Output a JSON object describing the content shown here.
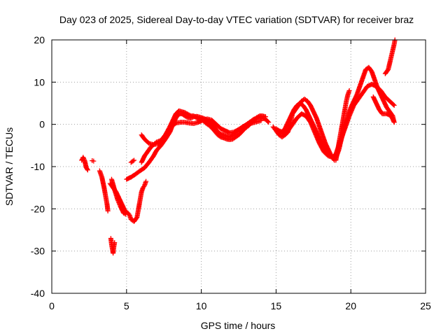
{
  "chart_data": {
    "type": "scatter",
    "title": "Day 023 of 2025, Sidereal Day-to-day VTEC variation (SDTVAR) for receiver braz",
    "xlabel": "GPS time / hours",
    "ylabel": "SDTVAR / TECUs",
    "xlim": [
      0,
      25
    ],
    "ylim": [
      -40,
      20
    ],
    "xticks": [
      0,
      5,
      10,
      15,
      20,
      25
    ],
    "yticks": [
      -40,
      -30,
      -20,
      -10,
      0,
      10,
      20
    ],
    "grid": true,
    "marker": "plus",
    "color": "#ff0000",
    "series": [
      {
        "segments": [
          [
            [
              2.0,
              -8.5
            ],
            [
              2.1,
              -7.8
            ],
            [
              2.2,
              -8.6
            ],
            [
              2.3,
              -10.2
            ],
            [
              2.4,
              -10.8
            ]
          ],
          [
            [
              2.7,
              -8.6
            ],
            [
              2.8,
              -8.7
            ]
          ],
          [
            [
              3.2,
              -11.0
            ],
            [
              3.35,
              -12.5
            ],
            [
              3.5,
              -15.0
            ],
            [
              3.6,
              -17.0
            ],
            [
              3.7,
              -19.0
            ],
            [
              3.75,
              -20.5
            ]
          ],
          [
            [
              3.95,
              -27.0
            ],
            [
              4.0,
              -28.5
            ],
            [
              4.05,
              -29.5
            ],
            [
              4.1,
              -30.5
            ],
            [
              4.15,
              -29.0
            ],
            [
              4.2,
              -28.0
            ]
          ],
          [
            [
              4.0,
              -13.0
            ],
            [
              4.2,
              -15.5
            ],
            [
              4.4,
              -17.8
            ],
            [
              4.6,
              -19.5
            ],
            [
              4.8,
              -21.0
            ],
            [
              4.95,
              -21.3
            ]
          ],
          [
            [
              3.9,
              -14.0
            ],
            [
              4.1,
              -15.0
            ],
            [
              4.3,
              -16.0
            ],
            [
              4.5,
              -17.5
            ],
            [
              4.7,
              -19.0
            ],
            [
              4.9,
              -20.5
            ],
            [
              5.1,
              -21.0
            ],
            [
              5.2,
              -21.5
            ],
            [
              5.3,
              -22.5
            ],
            [
              5.5,
              -23.0
            ],
            [
              5.7,
              -22.0
            ],
            [
              5.8,
              -20.0
            ],
            [
              5.9,
              -18.0
            ],
            [
              6.0,
              -16.0
            ],
            [
              6.1,
              -15.0
            ],
            [
              6.2,
              -14.5
            ],
            [
              6.3,
              -13.5
            ]
          ],
          [
            [
              5.0,
              -13.0
            ],
            [
              5.3,
              -12.5
            ],
            [
              5.6,
              -11.8
            ],
            [
              5.9,
              -11.0
            ],
            [
              6.2,
              -10.3
            ],
            [
              6.5,
              -9.0
            ],
            [
              6.8,
              -7.5
            ],
            [
              7.0,
              -6.2
            ],
            [
              7.3,
              -5.0
            ],
            [
              7.6,
              -3.5
            ],
            [
              7.9,
              -1.8
            ],
            [
              8.1,
              0.0
            ],
            [
              8.3,
              1.5
            ],
            [
              8.5,
              2.5
            ],
            [
              8.7,
              2.5
            ],
            [
              8.9,
              2.0
            ],
            [
              9.1,
              1.6
            ],
            [
              9.3,
              1.5
            ],
            [
              9.5,
              1.8
            ],
            [
              9.7,
              1.9
            ],
            [
              9.9,
              1.7
            ],
            [
              10.1,
              1.5
            ],
            [
              10.3,
              1.2
            ],
            [
              10.5,
              0.7
            ],
            [
              10.7,
              0.2
            ],
            [
              10.9,
              -0.8
            ],
            [
              11.1,
              -1.8
            ],
            [
              11.3,
              -2.3
            ],
            [
              11.5,
              -2.5
            ],
            [
              11.7,
              -2.8
            ],
            [
              11.9,
              -3.0
            ],
            [
              12.1,
              -2.6
            ],
            [
              12.3,
              -2.0
            ],
            [
              12.5,
              -1.4
            ],
            [
              12.7,
              -0.9
            ],
            [
              12.9,
              -0.3
            ],
            [
              13.1,
              0.2
            ],
            [
              13.3,
              0.7
            ],
            [
              13.5,
              1.2
            ],
            [
              13.7,
              1.5
            ],
            [
              13.9,
              1.7
            ],
            [
              14.1,
              1.5
            ],
            [
              14.3,
              1.2
            ],
            [
              14.5,
              0.5
            ]
          ],
          [
            [
              6.0,
              -9.0
            ],
            [
              6.2,
              -7.5
            ],
            [
              6.4,
              -6.5
            ],
            [
              6.6,
              -5.5
            ],
            [
              6.8,
              -4.8
            ],
            [
              7.0,
              -4.2
            ],
            [
              7.3,
              -3.8
            ],
            [
              7.6,
              -2.5
            ],
            [
              7.9,
              -0.5
            ],
            [
              8.1,
              1.0
            ],
            [
              8.3,
              2.5
            ],
            [
              8.5,
              3.2
            ],
            [
              8.7,
              3.0
            ],
            [
              8.9,
              2.8
            ],
            [
              9.1,
              2.4
            ],
            [
              9.3,
              2.0
            ],
            [
              9.5,
              2.0
            ],
            [
              9.7,
              1.5
            ],
            [
              9.9,
              1.2
            ],
            [
              10.1,
              1.0
            ],
            [
              10.3,
              0.3
            ],
            [
              10.5,
              -0.2
            ],
            [
              10.7,
              -0.8
            ],
            [
              10.9,
              -1.6
            ],
            [
              11.1,
              -2.5
            ],
            [
              11.3,
              -3.0
            ],
            [
              11.5,
              -3.2
            ],
            [
              11.7,
              -3.5
            ],
            [
              11.9,
              -3.6
            ],
            [
              12.1,
              -3.5
            ],
            [
              12.3,
              -3.0
            ],
            [
              12.5,
              -2.5
            ],
            [
              12.7,
              -1.8
            ],
            [
              12.9,
              -1.0
            ],
            [
              13.1,
              -0.5
            ],
            [
              13.3,
              0.2
            ],
            [
              13.5,
              0.9
            ],
            [
              13.7,
              1.6
            ],
            [
              13.9,
              2.0
            ],
            [
              14.1,
              2.0
            ],
            [
              14.3,
              1.8
            ]
          ],
          [
            [
              6.0,
              -2.5
            ],
            [
              6.2,
              -3.5
            ],
            [
              6.5,
              -4.5
            ],
            [
              6.8,
              -4.8
            ],
            [
              7.1,
              -4.6
            ],
            [
              7.4,
              -3.5
            ],
            [
              7.7,
              -2.0
            ],
            [
              8.0,
              -0.5
            ],
            [
              8.3,
              0.3
            ],
            [
              8.6,
              0.5
            ],
            [
              8.9,
              0.5
            ],
            [
              9.2,
              0.3
            ],
            [
              9.5,
              0.2
            ],
            [
              9.8,
              0.5
            ],
            [
              10.1,
              1.0
            ],
            [
              10.4,
              1.3
            ],
            [
              10.7,
              1.0
            ],
            [
              11.0,
              0.0
            ],
            [
              11.3,
              -1.0
            ],
            [
              11.6,
              -1.5
            ],
            [
              11.9,
              -2.0
            ],
            [
              12.2,
              -1.8
            ],
            [
              12.5,
              -1.2
            ],
            [
              12.8,
              -0.5
            ],
            [
              13.1,
              0.0
            ],
            [
              13.4,
              0.3
            ],
            [
              13.7,
              0.6
            ],
            [
              14.0,
              0.9
            ]
          ],
          [
            [
              5.3,
              -9.0
            ],
            [
              5.5,
              -8.5
            ]
          ],
          [
            [
              14.8,
              -0.6
            ],
            [
              15.0,
              -1.5
            ],
            [
              15.2,
              -2.5
            ],
            [
              15.4,
              -3.0
            ],
            [
              15.6,
              -2.5
            ],
            [
              15.8,
              -1.8
            ],
            [
              15.9,
              -0.5
            ],
            [
              16.0,
              1.0
            ],
            [
              16.1,
              2.5
            ],
            [
              16.3,
              3.5
            ],
            [
              16.5,
              4.5
            ],
            [
              16.7,
              5.5
            ],
            [
              16.9,
              6.0
            ],
            [
              17.1,
              5.5
            ],
            [
              17.3,
              4.5
            ],
            [
              17.5,
              3.0
            ],
            [
              17.7,
              1.5
            ],
            [
              17.9,
              -0.5
            ],
            [
              18.1,
              -2.5
            ],
            [
              18.3,
              -4.5
            ],
            [
              18.5,
              -6.0
            ],
            [
              18.7,
              -7.5
            ],
            [
              18.9,
              -8.5
            ],
            [
              19.0,
              -8.5
            ],
            [
              19.1,
              -6.5
            ],
            [
              19.2,
              -4.5
            ],
            [
              19.3,
              -2.5
            ],
            [
              19.4,
              -0.5
            ],
            [
              19.5,
              1.5
            ],
            [
              19.6,
              3.5
            ],
            [
              19.7,
              5.5
            ],
            [
              19.8,
              7.0
            ],
            [
              19.9,
              8.0
            ]
          ],
          [
            [
              15.0,
              -1.0
            ],
            [
              15.2,
              -1.5
            ],
            [
              15.4,
              -1.8
            ],
            [
              15.6,
              -1.0
            ],
            [
              15.8,
              0.5
            ],
            [
              16.0,
              2.0
            ],
            [
              16.2,
              3.5
            ],
            [
              16.4,
              4.5
            ],
            [
              16.6,
              5.0
            ],
            [
              16.8,
              4.5
            ],
            [
              17.0,
              3.5
            ],
            [
              17.2,
              2.0
            ],
            [
              17.4,
              0.5
            ],
            [
              17.6,
              -1.0
            ],
            [
              17.8,
              -2.5
            ],
            [
              18.0,
              -4.0
            ],
            [
              18.2,
              -5.5
            ],
            [
              18.4,
              -6.5
            ],
            [
              18.6,
              -7.5
            ],
            [
              18.8,
              -8.0
            ],
            [
              19.0,
              -8.0
            ],
            [
              19.2,
              -6.0
            ],
            [
              19.4,
              -3.0
            ],
            [
              19.6,
              -0.5
            ],
            [
              19.8,
              2.0
            ],
            [
              20.0,
              4.0
            ],
            [
              20.2,
              5.5
            ],
            [
              20.4,
              7.0
            ],
            [
              20.6,
              9.0
            ],
            [
              20.8,
              11.0
            ],
            [
              21.0,
              13.0
            ],
            [
              21.2,
              13.5
            ],
            [
              21.4,
              12.5
            ],
            [
              21.6,
              10.5
            ],
            [
              21.8,
              8.5
            ],
            [
              22.0,
              7.0
            ],
            [
              22.2,
              5.5
            ],
            [
              22.4,
              4.0
            ],
            [
              22.6,
              3.0
            ],
            [
              22.8,
              2.0
            ],
            [
              22.9,
              0.5
            ]
          ],
          [
            [
              15.2,
              -2.0
            ],
            [
              15.5,
              -2.2
            ],
            [
              15.8,
              -1.5
            ],
            [
              16.1,
              0.0
            ],
            [
              16.4,
              1.5
            ],
            [
              16.7,
              2.5
            ],
            [
              17.0,
              2.0
            ],
            [
              17.3,
              0.5
            ],
            [
              17.6,
              -2.0
            ],
            [
              17.9,
              -4.5
            ],
            [
              18.2,
              -6.5
            ],
            [
              18.5,
              -7.5
            ],
            [
              18.8,
              -7.8
            ],
            [
              19.0,
              -7.0
            ],
            [
              19.3,
              -4.0
            ],
            [
              19.6,
              -1.0
            ],
            [
              19.9,
              2.0
            ],
            [
              20.2,
              4.5
            ],
            [
              20.5,
              6.0
            ],
            [
              20.8,
              7.5
            ],
            [
              21.1,
              9.0
            ],
            [
              21.4,
              9.5
            ],
            [
              21.7,
              9.0
            ],
            [
              22.0,
              8.0
            ],
            [
              22.3,
              6.5
            ],
            [
              22.6,
              5.5
            ],
            [
              22.9,
              4.5
            ]
          ],
          [
            [
              21.5,
              6.5
            ],
            [
              21.7,
              5.0
            ],
            [
              21.9,
              3.5
            ],
            [
              22.1,
              2.5
            ],
            [
              22.4,
              2.5
            ],
            [
              22.7,
              2.0
            ],
            [
              22.9,
              0.5
            ]
          ],
          [
            [
              22.3,
              12.0
            ],
            [
              22.5,
              13.0
            ],
            [
              22.6,
              14.5
            ],
            [
              22.7,
              16.0
            ],
            [
              22.8,
              17.5
            ],
            [
              22.9,
              19.0
            ],
            [
              22.95,
              20.0
            ]
          ]
        ]
      }
    ]
  }
}
